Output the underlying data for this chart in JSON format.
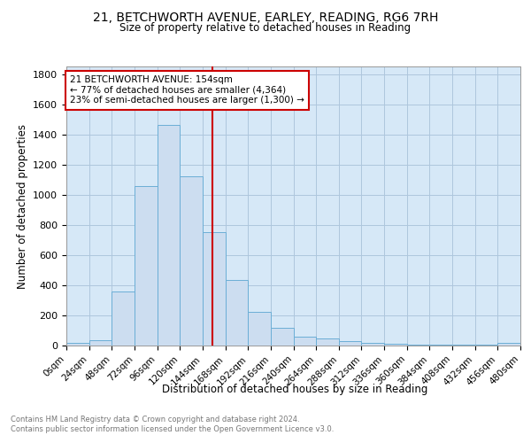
{
  "title1": "21, BETCHWORTH AVENUE, EARLEY, READING, RG6 7RH",
  "title2": "Size of property relative to detached houses in Reading",
  "xlabel": "Distribution of detached houses by size in Reading",
  "ylabel": "Number of detached properties",
  "bar_edges": [
    0,
    24,
    48,
    72,
    96,
    120,
    144,
    168,
    192,
    216,
    240,
    264,
    288,
    312,
    336,
    360,
    384,
    408,
    432,
    456
  ],
  "bar_heights": [
    15,
    35,
    360,
    1060,
    1460,
    1120,
    750,
    435,
    225,
    120,
    60,
    47,
    27,
    20,
    10,
    8,
    5,
    5,
    5,
    15
  ],
  "bar_color": "#ccddf0",
  "bar_edgecolor": "#6baed6",
  "grid_color": "#aec6dd",
  "bg_color": "#d6e8f7",
  "property_size": 154,
  "vline_color": "#cc0000",
  "annotation_title": "21 BETCHWORTH AVENUE: 154sqm",
  "annotation_line1": "← 77% of detached houses are smaller (4,364)",
  "annotation_line2": "23% of semi-detached houses are larger (1,300) →",
  "annotation_box_color": "#ffffff",
  "annotation_box_edgecolor": "#cc0000",
  "footer1": "Contains HM Land Registry data © Crown copyright and database right 2024.",
  "footer2": "Contains public sector information licensed under the Open Government Licence v3.0.",
  "tick_labels": [
    "0sqm",
    "24sqm",
    "48sqm",
    "72sqm",
    "96sqm",
    "120sqm",
    "144sqm",
    "168sqm",
    "192sqm",
    "216sqm",
    "240sqm",
    "264sqm",
    "288sqm",
    "312sqm",
    "336sqm",
    "360sqm",
    "384sqm",
    "408sqm",
    "432sqm",
    "456sqm",
    "480sqm"
  ],
  "ylim": [
    0,
    1850
  ],
  "yticks": [
    0,
    200,
    400,
    600,
    800,
    1000,
    1200,
    1400,
    1600,
    1800
  ],
  "xlim": [
    0,
    480
  ]
}
